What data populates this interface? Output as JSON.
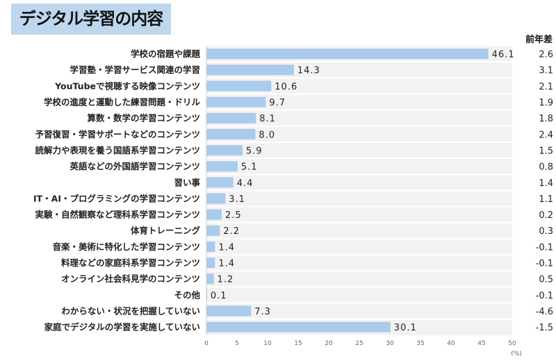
{
  "title": "デジタル学習の内容",
  "diff_header": "前年差",
  "chart_data": {
    "type": "bar",
    "orientation": "horizontal",
    "title": "デジタル学習の内容",
    "categories": [
      "学校の宿題や課題",
      "学習塾・学習サービス関連の学習",
      "YouTubeで視聴する映像コンテンツ",
      "学校の進度と運動した練習問題・ドリル",
      "算数・数学の学習コンテンツ",
      "予習復習・学習サポートなどのコンテンツ",
      "読解力や表現を養う国語系学習コンテンツ",
      "英語などの外国語学習コンテンツ",
      "習い事",
      "IT・AI・プログラミングの学習コンテンツ",
      "実験・自然観察など理科系学習コンテンツ",
      "体育トレーニング",
      "音楽・美術に特化した学習コンテンツ",
      "料理などの家庭科系学習コンテンツ",
      "オンライン社会科見学のコンテンツ",
      "その他",
      "わからない・状況を把握していない",
      "家庭でデジタルの学習を実施していない"
    ],
    "values": [
      46.1,
      14.3,
      10.6,
      9.7,
      8.1,
      8.0,
      5.9,
      5.1,
      4.4,
      3.1,
      2.5,
      2.2,
      1.4,
      1.4,
      1.2,
      0.1,
      7.3,
      30.1
    ],
    "value_labels": [
      "46.1",
      "14.3",
      "10.6",
      "9.7",
      "8.1",
      "8.0",
      "5.9",
      "5.1",
      "4.4",
      "3.1",
      "2.5",
      "2.2",
      "1.4",
      "1.4",
      "1.2",
      "0.1",
      "7.3",
      "30.1"
    ],
    "diff_labels": [
      "2.6",
      "3.1",
      "2.1",
      "1.9",
      "1.8",
      "2.4",
      "1.5",
      "0.8",
      "1.4",
      "1.1",
      "0.2",
      "0.3",
      "-0.1",
      "-0.1",
      "0.5",
      "-0.1",
      "-4.6",
      "-1.5"
    ],
    "xlim": [
      0,
      50
    ],
    "xticks": [
      "0",
      "5",
      "10",
      "15",
      "20",
      "25",
      "30",
      "35",
      "40",
      "45",
      "50"
    ],
    "xunit": "(%)",
    "bar_color": "#a9cbec",
    "plot_bg": "#f2f2f2",
    "grid": false,
    "legend": "none"
  }
}
